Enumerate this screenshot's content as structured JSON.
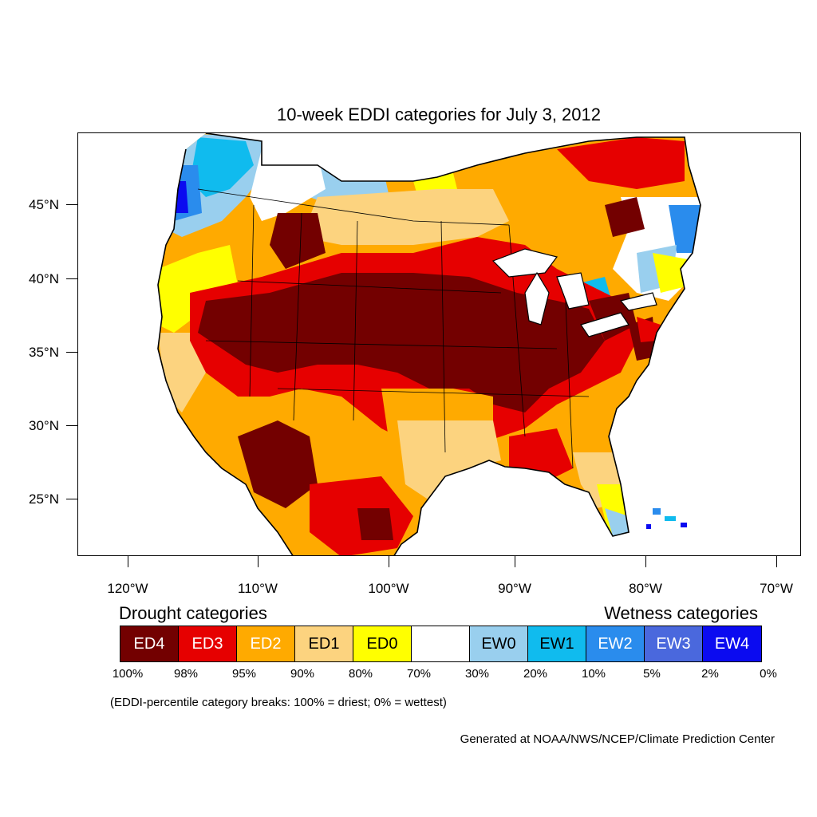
{
  "title": "10-week EDDI categories for July 3, 2012",
  "lat_labels": [
    "45°N",
    "40°N",
    "35°N",
    "30°N",
    "25°N"
  ],
  "lon_labels": [
    "120°W",
    "110°W",
    "100°W",
    "90°W",
    "80°W",
    "70°W"
  ],
  "legend": {
    "drought_heading": "Drought categories",
    "wetness_heading": "Wetness categories",
    "categories": [
      {
        "label": "ED4",
        "color": "#730000",
        "text_color": "#ffffff"
      },
      {
        "label": "ED3",
        "color": "#e60000",
        "text_color": "#ffffff"
      },
      {
        "label": "ED2",
        "color": "#ffaa00",
        "text_color": "#ffffff"
      },
      {
        "label": "ED1",
        "color": "#fcd37f",
        "text_color": "#000000"
      },
      {
        "label": "ED0",
        "color": "#ffff00",
        "text_color": "#000000"
      },
      {
        "label": "",
        "color": "#ffffff",
        "text_color": "#000000"
      },
      {
        "label": "EW0",
        "color": "#99cfee",
        "text_color": "#000000"
      },
      {
        "label": "EW1",
        "color": "#10bbee",
        "text_color": "#000000"
      },
      {
        "label": "EW2",
        "color": "#2a8ced",
        "text_color": "#ffffff"
      },
      {
        "label": "EW3",
        "color": "#4a68dd",
        "text_color": "#ffffff"
      },
      {
        "label": "EW4",
        "color": "#0b0bf0",
        "text_color": "#ffffff"
      }
    ],
    "percentiles": [
      "100%",
      "98%",
      "95%",
      "90%",
      "80%",
      "70%",
      "30%",
      "20%",
      "10%",
      "5%",
      "2%",
      "0%"
    ]
  },
  "note": "(EDDI-percentile category breaks: 100% = driest; 0% = wettest)",
  "credit": "Generated at NOAA/NWS/NCEP/Climate Prediction Center"
}
